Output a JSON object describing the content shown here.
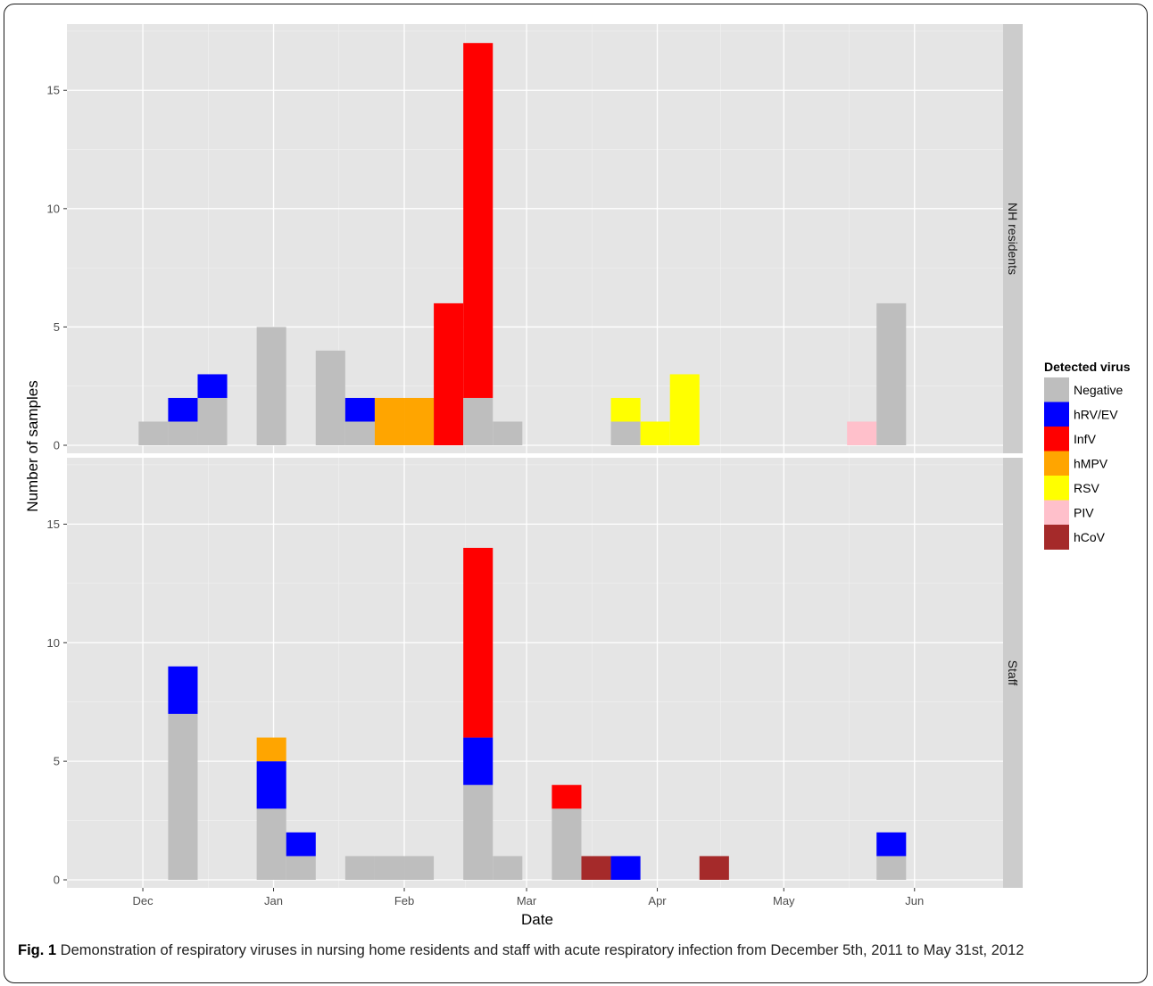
{
  "chart_data": {
    "type": "bar",
    "xlabel": "Date",
    "ylabel": "Number of samples",
    "ylim": [
      0,
      17.8
    ],
    "yticks": [
      0,
      5,
      10,
      15
    ],
    "xrange": [
      "2011-11-13",
      "2012-06-22"
    ],
    "xticks": [
      {
        "date": "2011-12-01",
        "label": "Dec"
      },
      {
        "date": "2012-01-01",
        "label": "Jan"
      },
      {
        "date": "2012-02-01",
        "label": "Feb"
      },
      {
        "date": "2012-03-01",
        "label": "Mar"
      },
      {
        "date": "2012-04-01",
        "label": "Apr"
      },
      {
        "date": "2012-05-01",
        "label": "May"
      },
      {
        "date": "2012-06-01",
        "label": "Jun"
      }
    ],
    "bin_width_days": 7,
    "legend": {
      "title": "Detected virus",
      "position": "right",
      "items": [
        {
          "name": "Negative",
          "color": "#bebebe"
        },
        {
          "name": "hRV/EV",
          "color": "#0000ff"
        },
        {
          "name": "InfV",
          "color": "#ff0000"
        },
        {
          "name": "hMPV",
          "color": "#ffa500"
        },
        {
          "name": "RSV",
          "color": "#ffff00"
        },
        {
          "name": "PIV",
          "color": "#ffc0cb"
        },
        {
          "name": "hCoV",
          "color": "#a52a2a"
        }
      ]
    },
    "panels": [
      {
        "label": "NH residents",
        "bins": [
          {
            "start": "2011-11-30",
            "counts": {
              "Negative": 1
            }
          },
          {
            "start": "2011-12-07",
            "counts": {
              "Negative": 1,
              "hRV/EV": 1
            }
          },
          {
            "start": "2011-12-14",
            "counts": {
              "Negative": 2,
              "hRV/EV": 1
            }
          },
          {
            "start": "2011-12-28",
            "counts": {
              "Negative": 5
            }
          },
          {
            "start": "2012-01-11",
            "counts": {
              "Negative": 4
            }
          },
          {
            "start": "2012-01-18",
            "counts": {
              "Negative": 1,
              "hRV/EV": 1
            }
          },
          {
            "start": "2012-01-25",
            "counts": {
              "hMPV": 2
            }
          },
          {
            "start": "2012-02-01",
            "counts": {
              "hMPV": 2
            }
          },
          {
            "start": "2012-02-08",
            "counts": {
              "InfV": 6
            }
          },
          {
            "start": "2012-02-15",
            "counts": {
              "Negative": 2,
              "InfV": 15
            }
          },
          {
            "start": "2012-02-22",
            "counts": {
              "Negative": 1
            }
          },
          {
            "start": "2012-03-21",
            "counts": {
              "Negative": 1,
              "RSV": 1
            }
          },
          {
            "start": "2012-03-28",
            "counts": {
              "RSV": 1
            }
          },
          {
            "start": "2012-04-04",
            "counts": {
              "RSV": 3
            }
          },
          {
            "start": "2012-05-16",
            "counts": {
              "PIV": 1
            }
          },
          {
            "start": "2012-05-23",
            "counts": {
              "Negative": 6
            }
          }
        ]
      },
      {
        "label": "Staff",
        "bins": [
          {
            "start": "2011-12-07",
            "counts": {
              "Negative": 7,
              "hRV/EV": 2
            }
          },
          {
            "start": "2011-12-28",
            "counts": {
              "Negative": 3,
              "hRV/EV": 2,
              "hMPV": 1
            }
          },
          {
            "start": "2012-01-04",
            "counts": {
              "Negative": 1,
              "hRV/EV": 1
            }
          },
          {
            "start": "2012-01-18",
            "counts": {
              "Negative": 1
            }
          },
          {
            "start": "2012-01-25",
            "counts": {
              "Negative": 1
            }
          },
          {
            "start": "2012-02-01",
            "counts": {
              "Negative": 1
            }
          },
          {
            "start": "2012-02-15",
            "counts": {
              "Negative": 4,
              "hRV/EV": 2,
              "InfV": 8
            }
          },
          {
            "start": "2012-02-22",
            "counts": {
              "Negative": 1
            }
          },
          {
            "start": "2012-03-07",
            "counts": {
              "Negative": 3,
              "InfV": 1
            }
          },
          {
            "start": "2012-03-14",
            "counts": {
              "hCoV": 1
            }
          },
          {
            "start": "2012-03-21",
            "counts": {
              "hRV/EV": 1
            }
          },
          {
            "start": "2012-04-11",
            "counts": {
              "hCoV": 1
            }
          },
          {
            "start": "2012-05-23",
            "counts": {
              "Negative": 1,
              "hRV/EV": 1
            }
          }
        ]
      }
    ]
  },
  "caption": {
    "label": "Fig. 1",
    "text": " Demonstration of respiratory viruses in nursing home residents and staff with acute respiratory infection from December 5th, 2011 to May 31st, 2012"
  }
}
